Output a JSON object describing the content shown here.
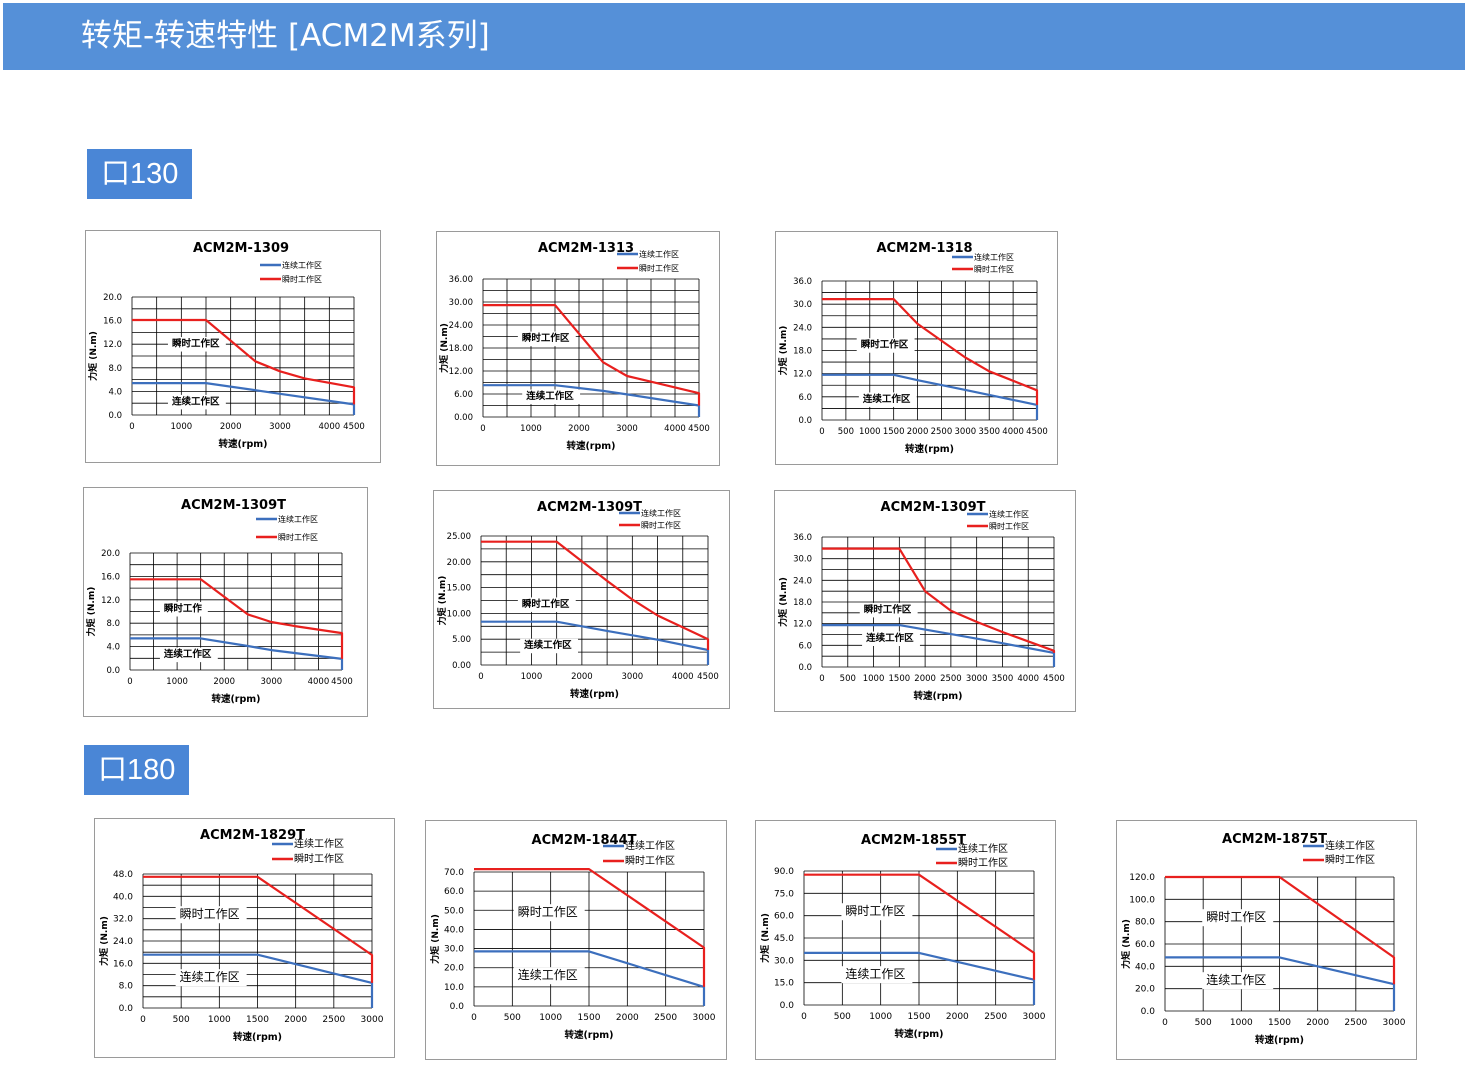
{
  "header": {
    "title": "转矩-转速特性 [ACM2M系列]"
  },
  "sections": {
    "s130": "口130",
    "s180": "口180"
  },
  "colors": {
    "continuous": "#3c6fbd",
    "peak": "#e8201e",
    "header_bg": "#5590d8",
    "tag_bg": "#4a86d6"
  },
  "chart_data": [
    {
      "type": "line",
      "title": "ACM2M-1309",
      "xlabel": "转速(rpm)",
      "ylabel": "力矩 (N.m)",
      "legend": [
        "连续工作区",
        "瞬时工作区"
      ],
      "region_labels": {
        "peak": "瞬时工作区",
        "continuous": "连续工作区"
      },
      "xlim": [
        0,
        4500
      ],
      "ylim": [
        0,
        20
      ],
      "xticks": [
        0,
        1000,
        2000,
        3000,
        4000,
        4500
      ],
      "xtick_labels": [
        "0",
        "1000",
        "2000",
        "3000",
        "4000",
        "4500"
      ],
      "yticks": [
        0,
        4,
        8,
        12,
        16,
        20
      ],
      "ytick_labels": [
        "0.0",
        "4.0",
        "8.0",
        "12.0",
        "16.0",
        "20.0"
      ],
      "vgrid": [
        0,
        500,
        1000,
        1500,
        2000,
        2500,
        3000,
        3500,
        4000,
        4500
      ],
      "hgrid": [
        0,
        2,
        4,
        6,
        8,
        10,
        12,
        14,
        16,
        18,
        20
      ],
      "series": [
        {
          "name": "连续工作区",
          "x": [
            0,
            1500,
            2500,
            3000,
            4500,
            4500
          ],
          "y": [
            5.4,
            5.4,
            4.2,
            3.6,
            1.8,
            0
          ]
        },
        {
          "name": "瞬时工作区",
          "x": [
            0,
            1500,
            2500,
            3000,
            3500,
            4500,
            4500
          ],
          "y": [
            16.1,
            16.1,
            9.1,
            7.4,
            6.2,
            4.7,
            1.8
          ]
        }
      ]
    },
    {
      "type": "line",
      "title": "ACM2M-1313",
      "xlabel": "转速(rpm)",
      "ylabel": "力矩 (N.m)",
      "legend": [
        "连续工作区",
        "瞬时工作区"
      ],
      "region_labels": {
        "peak": "瞬时工作区",
        "continuous": "连续工作区"
      },
      "xlim": [
        0,
        4500
      ],
      "ylim": [
        0,
        36
      ],
      "xticks": [
        0,
        1000,
        2000,
        3000,
        4000,
        4500
      ],
      "xtick_labels": [
        "0",
        "1000",
        "2000",
        "3000",
        "4000",
        "4500"
      ],
      "yticks": [
        0,
        6,
        12,
        18,
        24,
        30,
        36
      ],
      "ytick_labels": [
        "0.00",
        "6.00",
        "12.00",
        "18.00",
        "24.00",
        "30.00",
        "36.00"
      ],
      "vgrid": [
        0,
        500,
        1000,
        1500,
        2000,
        2500,
        3000,
        3500,
        4000,
        4500
      ],
      "hgrid": [
        0,
        3,
        6,
        9,
        12,
        15,
        18,
        21,
        24,
        27,
        30,
        33,
        36
      ],
      "series": [
        {
          "name": "连续工作区",
          "x": [
            0,
            1500,
            2500,
            3000,
            4500,
            4500
          ],
          "y": [
            8.3,
            8.3,
            6.8,
            5.9,
            3.0,
            0
          ]
        },
        {
          "name": "瞬时工作区",
          "x": [
            0,
            1500,
            2500,
            3000,
            3500,
            4500,
            4500
          ],
          "y": [
            29.2,
            29.2,
            14.3,
            10.7,
            9.2,
            6.2,
            3.0
          ]
        }
      ]
    },
    {
      "type": "line",
      "title": "ACM2M-1318",
      "xlabel": "转速(rpm)",
      "ylabel": "力矩 (N.m)",
      "legend": [
        "连续工作区",
        "瞬时工作区"
      ],
      "region_labels": {
        "peak": "瞬时工作区",
        "continuous": "连续工作区"
      },
      "xlim": [
        0,
        4500
      ],
      "ylim": [
        0,
        36
      ],
      "xticks": [
        0,
        500,
        1000,
        1500,
        2000,
        2500,
        3000,
        3500,
        4000,
        4500
      ],
      "xtick_labels": [
        "0",
        "500",
        "1000",
        "1500",
        "2000",
        "2500",
        "3000",
        "3500",
        "4000",
        "4500"
      ],
      "yticks": [
        0,
        6,
        12,
        18,
        24,
        30,
        36
      ],
      "ytick_labels": [
        "0.0",
        "6.0",
        "12.0",
        "18.0",
        "24.0",
        "30.0",
        "36.0"
      ],
      "vgrid": [
        0,
        500,
        1000,
        1500,
        2000,
        2500,
        3000,
        3500,
        4000,
        4500
      ],
      "hgrid": [
        0,
        3,
        6,
        9,
        12,
        15,
        18,
        21,
        24,
        27,
        30,
        33,
        36
      ],
      "series": [
        {
          "name": "连续工作区",
          "x": [
            0,
            1500,
            2000,
            3000,
            4500,
            4500
          ],
          "y": [
            11.7,
            11.7,
            10.3,
            7.8,
            3.9,
            0
          ]
        },
        {
          "name": "瞬时工作区",
          "x": [
            0,
            1500,
            2000,
            3000,
            3500,
            4500,
            4500
          ],
          "y": [
            31.3,
            31.3,
            24.9,
            16.2,
            12.6,
            7.7,
            3.9
          ]
        }
      ]
    },
    {
      "type": "line",
      "title": "ACM2M-1309T",
      "xlabel": "转速(rpm)",
      "ylabel": "力矩 (N.m)",
      "legend": [
        "连续工作区",
        "瞬时工作区"
      ],
      "region_labels": {
        "peak": "瞬时工作",
        "continuous": "连续工作区"
      },
      "xlim": [
        0,
        4500
      ],
      "ylim": [
        0,
        20
      ],
      "xticks": [
        0,
        1000,
        2000,
        3000,
        4000,
        4500
      ],
      "xtick_labels": [
        "0",
        "1000",
        "2000",
        "3000",
        "4000",
        "4500"
      ],
      "yticks": [
        0,
        4,
        8,
        12,
        16,
        20
      ],
      "ytick_labels": [
        "0.0",
        "4.0",
        "8.0",
        "12.0",
        "16.0",
        "20.0"
      ],
      "vgrid": [
        0,
        500,
        1000,
        1500,
        2000,
        2500,
        3000,
        3500,
        4000,
        4500
      ],
      "hgrid": [
        0,
        2,
        4,
        6,
        8,
        10,
        12,
        14,
        16,
        18,
        20
      ],
      "series": [
        {
          "name": "连续工作区",
          "x": [
            0,
            1500,
            2500,
            3000,
            4500,
            4500
          ],
          "y": [
            5.4,
            5.4,
            4.1,
            3.4,
            1.9,
            0
          ]
        },
        {
          "name": "瞬时工作区",
          "x": [
            0,
            1500,
            2500,
            3000,
            3500,
            4500,
            4500
          ],
          "y": [
            15.5,
            15.5,
            9.5,
            8.2,
            7.5,
            6.3,
            1.9
          ]
        }
      ]
    },
    {
      "type": "line",
      "title": "ACM2M-1309T",
      "xlabel": "转速(rpm)",
      "ylabel": "力矩 (N.m)",
      "legend": [
        "连续工作区",
        "瞬时工作区"
      ],
      "region_labels": {
        "peak": "瞬时工作区",
        "continuous": "连续工作区"
      },
      "xlim": [
        0,
        4500
      ],
      "ylim": [
        0,
        25
      ],
      "xticks": [
        0,
        1000,
        2000,
        3000,
        4000,
        4500
      ],
      "xtick_labels": [
        "0",
        "1000",
        "2000",
        "3000",
        "4000",
        "4500"
      ],
      "yticks": [
        0,
        5,
        10,
        15,
        20,
        25
      ],
      "ytick_labels": [
        "0.00",
        "5.00",
        "10.00",
        "15.00",
        "20.00",
        "25.00"
      ],
      "vgrid": [
        0,
        500,
        1000,
        1500,
        2000,
        2500,
        3000,
        3500,
        4000,
        4500
      ],
      "hgrid": [
        0,
        2.5,
        5,
        7.5,
        10,
        12.5,
        15,
        17.5,
        20,
        22.5,
        25
      ],
      "series": [
        {
          "name": "连续工作区",
          "x": [
            0,
            1500,
            2500,
            3500,
            4500,
            4500
          ],
          "y": [
            8.4,
            8.4,
            6.6,
            4.9,
            2.9,
            0
          ]
        },
        {
          "name": "瞬时工作区",
          "x": [
            0,
            1500,
            2500,
            3000,
            3500,
            4500,
            4500
          ],
          "y": [
            23.9,
            23.9,
            16.3,
            12.7,
            9.6,
            5.0,
            2.9
          ]
        }
      ]
    },
    {
      "type": "line",
      "title": "ACM2M-1309T",
      "xlabel": "转速(rpm)",
      "ylabel": "力矩 (N.m)",
      "legend": [
        "连续工作区",
        "瞬时工作区"
      ],
      "region_labels": {
        "peak": "瞬时工作区",
        "continuous": "连续工作区"
      },
      "xlim": [
        0,
        4500
      ],
      "ylim": [
        0,
        36
      ],
      "xticks": [
        0,
        500,
        1000,
        1500,
        2000,
        2500,
        3000,
        3500,
        4000,
        4500
      ],
      "xtick_labels": [
        "0",
        "500",
        "1000",
        "1500",
        "2000",
        "2500",
        "3000",
        "3500",
        "4000",
        "4500"
      ],
      "yticks": [
        0,
        6,
        12,
        18,
        24,
        30,
        36
      ],
      "ytick_labels": [
        "0.0",
        "6.0",
        "12.0",
        "18.0",
        "24.0",
        "30.0",
        "36.0"
      ],
      "vgrid": [
        0,
        500,
        1000,
        1500,
        2000,
        2500,
        3000,
        3500,
        4000,
        4500
      ],
      "hgrid": [
        0,
        3,
        6,
        9,
        12,
        15,
        18,
        21,
        24,
        27,
        30,
        33,
        36
      ],
      "series": [
        {
          "name": "连续工作区",
          "x": [
            0,
            1500,
            2500,
            3500,
            4500,
            4500
          ],
          "y": [
            11.6,
            11.6,
            9.1,
            6.6,
            3.9,
            0
          ]
        },
        {
          "name": "瞬时工作区",
          "x": [
            0,
            1500,
            2000,
            2500,
            3000,
            3500,
            4500,
            4500
          ],
          "y": [
            32.8,
            32.8,
            21.0,
            15.6,
            12.5,
            9.7,
            4.5,
            3.9
          ]
        }
      ]
    },
    {
      "type": "line",
      "title": "ACM2M-1829T",
      "xlabel": "转速(rpm)",
      "ylabel": "力矩 (N.m)",
      "legend": [
        "连续工作区",
        "瞬时工作区"
      ],
      "region_labels": {
        "peak": "瞬时工作区",
        "continuous": "连续工作区"
      },
      "xlim": [
        0,
        3000
      ],
      "ylim": [
        0,
        48
      ],
      "xticks": [
        0,
        500,
        1000,
        1500,
        2000,
        2500,
        3000
      ],
      "xtick_labels": [
        "0",
        "500",
        "1000",
        "1500",
        "2000",
        "2500",
        "3000"
      ],
      "yticks": [
        0,
        8,
        16,
        24,
        32,
        40,
        48
      ],
      "ytick_labels": [
        "0.0",
        "8.0",
        "16.0",
        "24.0",
        "32.0",
        "40.0",
        "48.0"
      ],
      "vgrid": [
        0,
        500,
        1000,
        1500,
        2000,
        2500,
        3000
      ],
      "hgrid": [
        0,
        4,
        8,
        12,
        16,
        20,
        24,
        28,
        32,
        36,
        40,
        44,
        48
      ],
      "series": [
        {
          "name": "连续工作区",
          "x": [
            0,
            1500,
            3000,
            3000
          ],
          "y": [
            19.1,
            19.1,
            9.0,
            0
          ]
        },
        {
          "name": "瞬时工作区",
          "x": [
            0,
            1500,
            3000,
            3000
          ],
          "y": [
            47.0,
            47.0,
            19.0,
            9.0
          ]
        }
      ]
    },
    {
      "type": "line",
      "title": "ACM2M-1844T",
      "xlabel": "转速(rpm)",
      "ylabel": "力矩 (N.m)",
      "legend": [
        "连续工作区",
        "瞬时工作区"
      ],
      "region_labels": {
        "peak": "瞬时工作区",
        "continuous": "连续工作区"
      },
      "xlim": [
        0,
        3000
      ],
      "ylim": [
        0,
        70
      ],
      "xticks": [
        0,
        500,
        1000,
        1500,
        2000,
        2500,
        3000
      ],
      "xtick_labels": [
        "0",
        "500",
        "1000",
        "1500",
        "2000",
        "2500",
        "3000"
      ],
      "yticks": [
        0,
        10,
        20,
        30,
        40,
        50,
        60,
        70
      ],
      "ytick_labels": [
        "0.0",
        "10.0",
        "20.0",
        "30.0",
        "40.0",
        "50.0",
        "60.0",
        "70.0"
      ],
      "vgrid": [
        0,
        500,
        1000,
        1500,
        2000,
        2500,
        3000
      ],
      "hgrid": [
        0,
        10,
        20,
        30,
        40,
        50,
        60,
        70
      ],
      "series": [
        {
          "name": "连续工作区",
          "x": [
            0,
            1500,
            3000,
            3000
          ],
          "y": [
            28.5,
            28.5,
            10.0,
            0
          ]
        },
        {
          "name": "瞬时工作区",
          "x": [
            0,
            1500,
            3000,
            3000
          ],
          "y": [
            71.5,
            71.5,
            30.5,
            10.0
          ]
        }
      ]
    },
    {
      "type": "line",
      "title": "ACM2M-1855T",
      "xlabel": "转速(rpm)",
      "ylabel": "力矩 (N.m)",
      "legend": [
        "连续工作区",
        "瞬时工作区"
      ],
      "region_labels": {
        "peak": "瞬时工作区",
        "continuous": "连续工作区"
      },
      "xlim": [
        0,
        3000
      ],
      "ylim": [
        0,
        90
      ],
      "xticks": [
        0,
        500,
        1000,
        1500,
        2000,
        2500,
        3000
      ],
      "xtick_labels": [
        "0",
        "500",
        "1000",
        "1500",
        "2000",
        "2500",
        "3000"
      ],
      "yticks": [
        0,
        15,
        30,
        45,
        60,
        75,
        90
      ],
      "ytick_labels": [
        "0.0",
        "15.0",
        "30.0",
        "45.0",
        "60.0",
        "75.0",
        "90.0"
      ],
      "vgrid": [
        0,
        500,
        1000,
        1500,
        2000,
        2500,
        3000
      ],
      "hgrid": [
        0,
        15,
        30,
        45,
        60,
        75,
        90
      ],
      "series": [
        {
          "name": "连续工作区",
          "x": [
            0,
            1500,
            3000,
            3000
          ],
          "y": [
            35.0,
            35.0,
            17.0,
            0
          ]
        },
        {
          "name": "瞬时工作区",
          "x": [
            0,
            1500,
            3000,
            3000
          ],
          "y": [
            87.5,
            87.5,
            35.0,
            17.0
          ]
        }
      ]
    },
    {
      "type": "line",
      "title": "ACM2M-1875T",
      "xlabel": "转速(rpm)",
      "ylabel": "力矩 (N.m)",
      "legend": [
        "连续工作区",
        "瞬时工作区"
      ],
      "region_labels": {
        "peak": "瞬时工作区",
        "continuous": "连续工作区"
      },
      "xlim": [
        0,
        3000
      ],
      "ylim": [
        0,
        120
      ],
      "xticks": [
        0,
        500,
        1000,
        1500,
        2000,
        2500,
        3000
      ],
      "xtick_labels": [
        "0",
        "500",
        "1000",
        "1500",
        "2000",
        "2500",
        "3000"
      ],
      "yticks": [
        0,
        20,
        40,
        60,
        80,
        100,
        120
      ],
      "ytick_labels": [
        "0.0",
        "20.0",
        "40.0",
        "60.0",
        "80.0",
        "100.0",
        "120.0"
      ],
      "vgrid": [
        0,
        500,
        1000,
        1500,
        2000,
        2500,
        3000
      ],
      "hgrid": [
        0,
        20,
        40,
        60,
        80,
        100,
        120
      ],
      "series": [
        {
          "name": "连续工作区",
          "x": [
            0,
            1500,
            3000,
            3000
          ],
          "y": [
            48.0,
            48.0,
            24.0,
            0
          ]
        },
        {
          "name": "瞬时工作区",
          "x": [
            0,
            1500,
            3000,
            3000
          ],
          "y": [
            120.0,
            120.0,
            48.0,
            24.0
          ]
        }
      ]
    }
  ]
}
